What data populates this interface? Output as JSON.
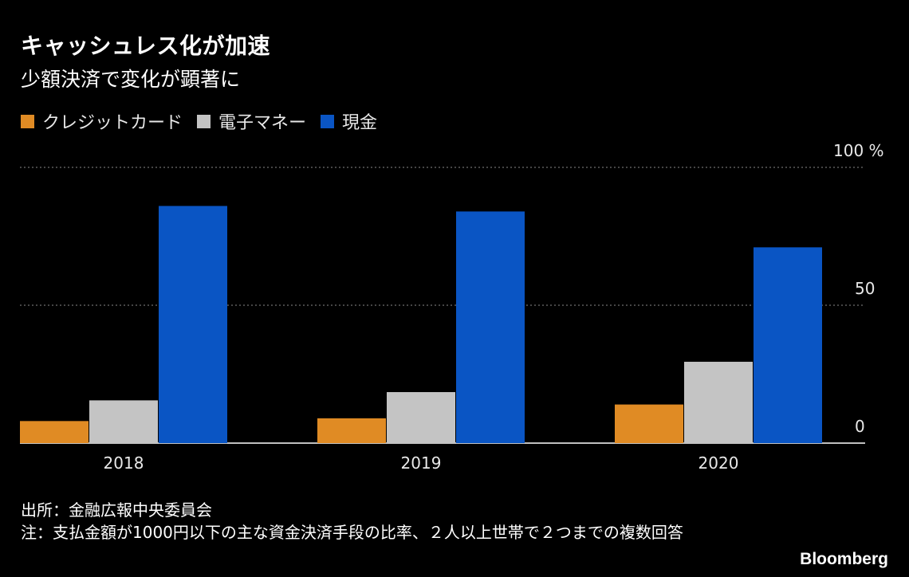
{
  "header": {
    "title": "キャッシュレス化が加速",
    "subtitle": "少額決済で変化が顕著に"
  },
  "legend": [
    {
      "label": "クレジットカード",
      "color": "#e08b24"
    },
    {
      "label": "電子マネー",
      "color": "#c4c4c4"
    },
    {
      "label": "現金",
      "color": "#0a55c4"
    }
  ],
  "notes": {
    "source": "出所：金融広報中央委員会",
    "note": "注：支払金額が1000円以下の主な資金決済手段の比率、２人以上世帯で２つまでの複数回答"
  },
  "brand": "Bloomberg",
  "chart_data": {
    "type": "bar",
    "categories": [
      "2018",
      "2019",
      "2020"
    ],
    "series": [
      {
        "name": "クレジットカード",
        "color": "#e08b24",
        "values": [
          8,
          9,
          14
        ]
      },
      {
        "name": "電子マネー",
        "color": "#c4c4c4",
        "values": [
          15.5,
          18.5,
          29.5
        ]
      },
      {
        "name": "現金",
        "color": "#0a55c4",
        "values": [
          86,
          84,
          71
        ]
      }
    ],
    "ylim": [
      0,
      100
    ],
    "yticks": [
      0,
      50,
      100
    ],
    "ytick_labels": [
      "0",
      "50",
      "100 %"
    ],
    "grid": true,
    "legend_position": "top-left"
  }
}
